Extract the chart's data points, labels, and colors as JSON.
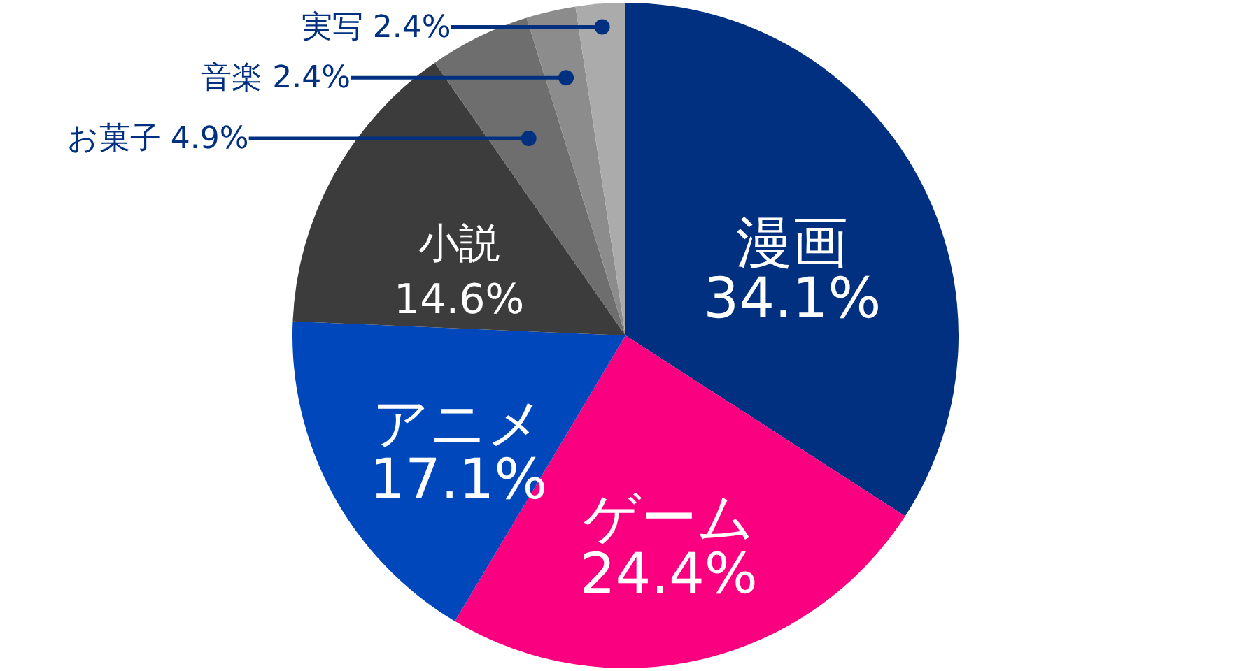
{
  "chart_data": {
    "type": "pie",
    "categories": [
      "漫画",
      "ゲーム",
      "アニメ",
      "小説",
      "お菓子",
      "音楽",
      "実写"
    ],
    "values": [
      34.1,
      24.4,
      17.1,
      14.6,
      4.9,
      2.4,
      2.4
    ],
    "colors": [
      "#00307f",
      "#fa0080",
      "#0047bb",
      "#3c3c3c",
      "#6e6e6e",
      "#8c8c8c",
      "#ababab"
    ],
    "value_labels": [
      "34.1%",
      "24.4%",
      "17.1%",
      "14.6%",
      "4.9%",
      "2.4%",
      "2.4%"
    ]
  }
}
